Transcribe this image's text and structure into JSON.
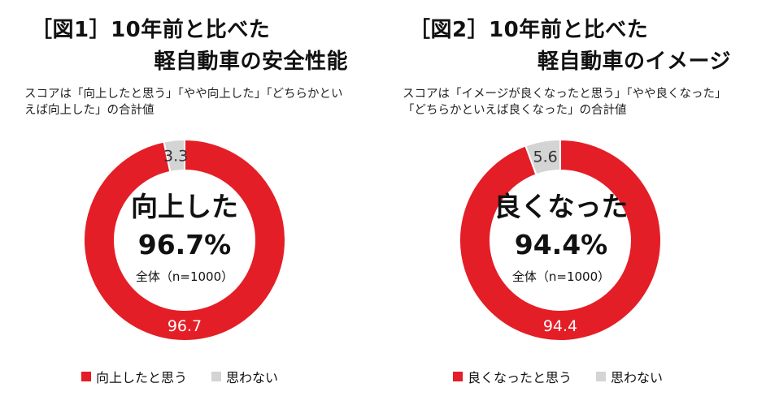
{
  "colors": {
    "positive": "#e41e26",
    "negative": "#d4d4d4",
    "segment_label": "#ffffff",
    "minor_label": "#333333"
  },
  "chart_data": [
    {
      "type": "pie",
      "title_line1": "［図1］10年前と比べた",
      "title_line2": "軽自動車の安全性能",
      "note_lines": [
        "スコアは「向上したと思う」「やや向上した」「どちらかとい",
        "えば向上した」の合計値"
      ],
      "center_main": "向上した",
      "center_pct": "96.7%",
      "center_base": "全体（n=1000）",
      "series": [
        {
          "name": "向上したと思う",
          "value": 96.7,
          "label": "96.7",
          "color": "#e41e26"
        },
        {
          "name": "思わない",
          "value": 3.3,
          "label": "3.3",
          "color": "#d4d4d4"
        }
      ],
      "legend": [
        "向上したと思う",
        "思わない"
      ]
    },
    {
      "type": "pie",
      "title_line1": "［図2］10年前と比べた",
      "title_line2": "軽自動車のイメージ",
      "note_lines": [
        "スコアは「イメージが良くなったと思う」「やや良くなった」",
        "「どちらかといえば良くなった」の合計値"
      ],
      "center_main": "良くなった",
      "center_pct": "94.4%",
      "center_base": "全体（n=1000）",
      "series": [
        {
          "name": "良くなったと思う",
          "value": 94.4,
          "label": "94.4",
          "color": "#e41e26"
        },
        {
          "name": "思わない",
          "value": 5.6,
          "label": "5.6",
          "color": "#d4d4d4"
        }
      ],
      "legend": [
        "良くなったと思う",
        "思わない"
      ]
    }
  ]
}
